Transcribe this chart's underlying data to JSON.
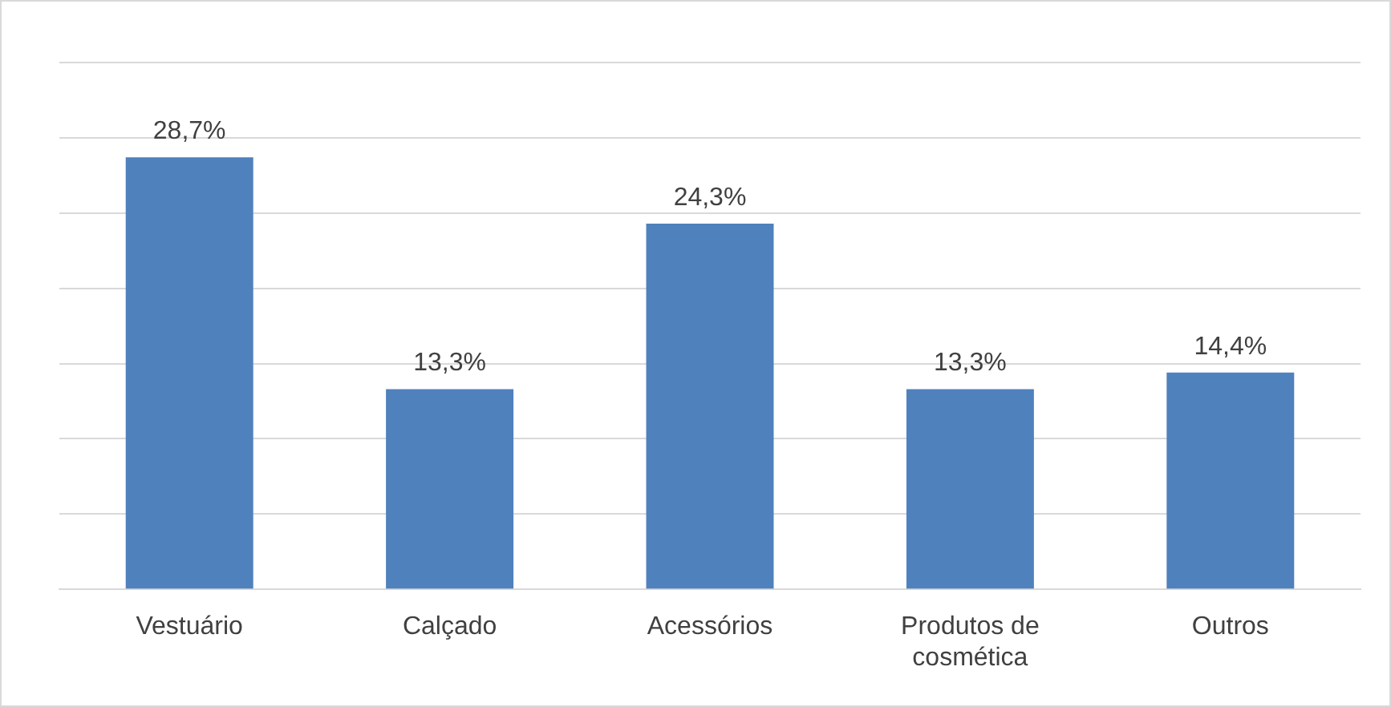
{
  "chart_data": {
    "type": "bar",
    "categories": [
      "Vestuário",
      "Calçado",
      "Acessórios",
      "Produtos de cosmética",
      "Outros"
    ],
    "values": [
      28.7,
      13.3,
      24.3,
      13.3,
      14.4
    ],
    "value_labels": [
      "28,7%",
      "13,3%",
      "24,3%",
      "13,3%",
      "14,4%"
    ],
    "color": "#4f81bd",
    "ylim": [
      0,
      35
    ],
    "yticks": [
      {
        "value": 0,
        "label": null
      },
      {
        "value": 5,
        "label": null
      },
      {
        "value": 10,
        "label": null
      },
      {
        "value": 15,
        "label": null
      },
      {
        "value": 20,
        "label": null
      },
      {
        "value": 25,
        "label": null
      },
      {
        "value": 30,
        "label": null
      },
      {
        "value": 35,
        "label": null
      }
    ],
    "grid": "y",
    "tick_labels": "x",
    "legend": false
  }
}
